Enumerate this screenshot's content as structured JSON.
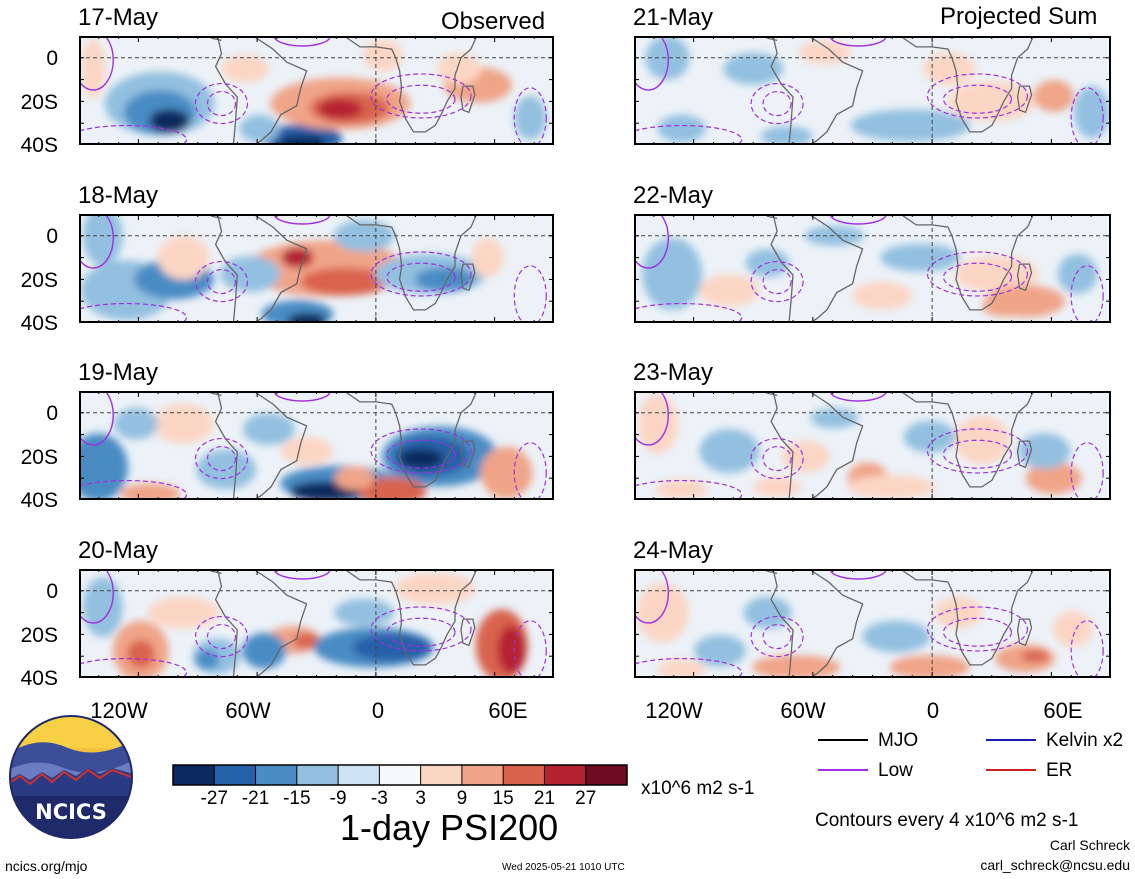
{
  "header": {
    "left_label": "Observed",
    "right_label": "Projected Sum"
  },
  "panels": {
    "observed": [
      {
        "date": "17-May"
      },
      {
        "date": "18-May"
      },
      {
        "date": "19-May"
      },
      {
        "date": "20-May"
      }
    ],
    "projected": [
      {
        "date": "21-May"
      },
      {
        "date": "22-May"
      },
      {
        "date": "23-May"
      },
      {
        "date": "24-May"
      }
    ]
  },
  "axes": {
    "lat_labels": [
      "0",
      "20S",
      "40S"
    ],
    "lon_labels": [
      "120W",
      "60W",
      "0",
      "60E"
    ]
  },
  "colorbar": {
    "values": [
      "-27",
      "-21",
      "-15",
      "-9",
      "-3",
      "3",
      "9",
      "15",
      "21",
      "27"
    ],
    "colors": [
      "#0d2a5e",
      "#2561a8",
      "#4a8cc4",
      "#93c0e0",
      "#cde2f2",
      "#f7f9fb",
      "#fcd6c4",
      "#f0a488",
      "#d9634d",
      "#b52331",
      "#6e0c21"
    ],
    "units": "x10^6 m2 s-1",
    "title": "1-day PSI200"
  },
  "legend": {
    "items": [
      {
        "label": "MJO",
        "color": "#000000"
      },
      {
        "label": "Kelvin x2",
        "color": "#1a1ab0"
      },
      {
        "label": "Low",
        "color": "#a030e0"
      },
      {
        "label": "ER",
        "color": "#cc2020"
      }
    ],
    "contours_note": "Contours every 4 x10^6 m2 s-1"
  },
  "logo": {
    "text": "NCICS"
  },
  "footer": {
    "website": "ncics.org/mjo",
    "timestamp": "Wed 2025-05-21 1010 UTC",
    "author": "Carl Schreck",
    "email": "carl_schreck@ncsu.edu"
  }
}
